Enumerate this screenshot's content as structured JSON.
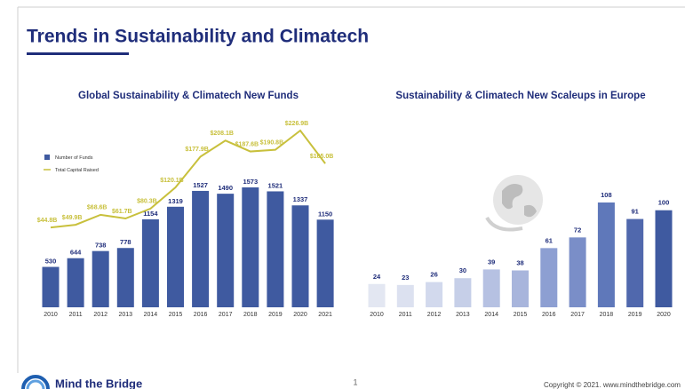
{
  "header": {
    "title": "Trends in Sustainability and Climatech"
  },
  "footer": {
    "brand": "Mind the Bridge",
    "page": "1",
    "copyright": "Copyright © 2021. www.mindthebridge.com"
  },
  "chart_data": [
    {
      "type": "bar",
      "title": "Global Sustainability & Climatech New Funds",
      "categories": [
        "2010",
        "2011",
        "2012",
        "2013",
        "2014",
        "2015",
        "2016",
        "2017",
        "2018",
        "2019",
        "2020",
        "2021"
      ],
      "legend": "left",
      "series": [
        {
          "name": "Number of Funds",
          "type": "bar",
          "color": "#3f5aa0",
          "values": [
            530,
            644,
            738,
            778,
            1154,
            1319,
            1527,
            1490,
            1573,
            1521,
            1337,
            1150
          ]
        },
        {
          "name": "Total Capital Raised",
          "type": "line",
          "axis": "y2",
          "color": "#c8c03c",
          "values": [
            44.8,
            49.9,
            68.6,
            61.7,
            80.3,
            120.1,
            177.9,
            208.1,
            187.6,
            190.8,
            226.9,
            165.0
          ],
          "value_labels": [
            "$44.8B",
            "$49.9B",
            "$68.6B",
            "$61.7B",
            "$80.3B",
            "$120.1B",
            "$177.9B",
            "$208.1B",
            "$187.6B",
            "$190.8B",
            "$226.9B",
            "$165.0B"
          ]
        }
      ]
    },
    {
      "type": "bar",
      "title": "Sustainability & Climatech New Scaleups in Europe",
      "categories": [
        "2010",
        "2011",
        "2012",
        "2013",
        "2014",
        "2015",
        "2016",
        "2017",
        "2018",
        "2019",
        "2020"
      ],
      "values": [
        24,
        23,
        26,
        30,
        39,
        38,
        61,
        72,
        108,
        91,
        100
      ],
      "colors": [
        "#e3e7f2",
        "#dce1f0",
        "#d2d9ed",
        "#c6cfe8",
        "#b6c1e2",
        "#a8b5dc",
        "#8d9fd2",
        "#7a8ec8",
        "#5f78ba",
        "#5068ad",
        "#3f5aa0"
      ]
    }
  ]
}
